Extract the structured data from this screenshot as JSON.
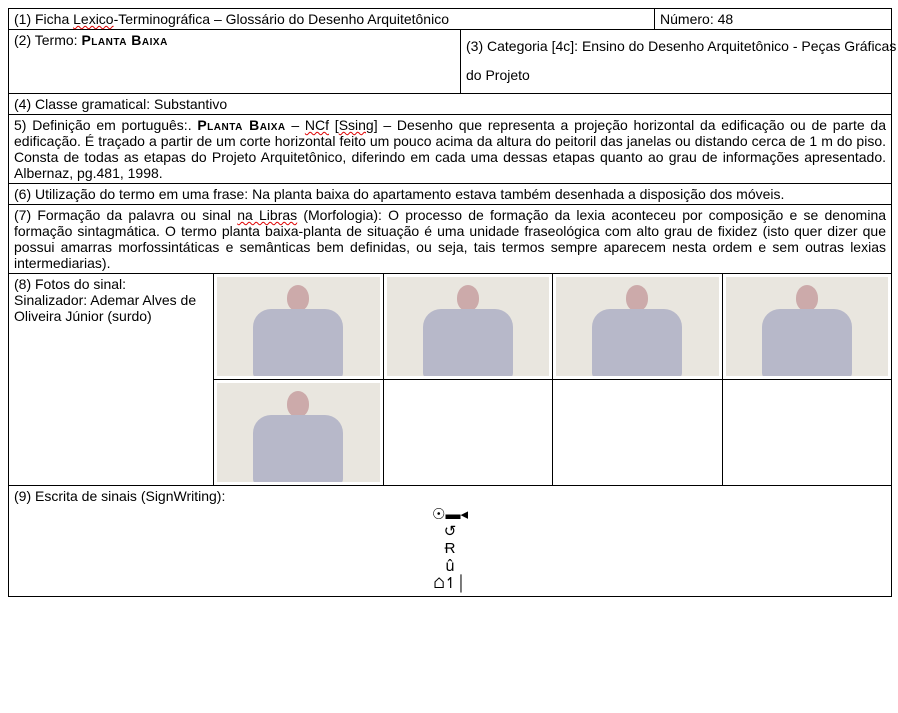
{
  "header": {
    "title_label": "(1) Ficha ",
    "title_word1": "Lexico",
    "title_rest": "-Terminográfica – Glossário do Desenho Arquitetônico",
    "number_label": "Número: ",
    "number_value": "48"
  },
  "term": {
    "label": "(2) Termo: ",
    "value": "Planta Baixa"
  },
  "category": {
    "label": "(3) Categoria [4c]: ",
    "text": "Ensino do Desenho Arquitetônico - Peças Gráficas do Projeto"
  },
  "grammar": {
    "text": "(4) Classe gramatical: Substantivo"
  },
  "definition": {
    "lead": "5) Definição em português:. ",
    "term": "Planta Baixa",
    "dash": " – ",
    "code": "NCf",
    "bracket": " [",
    "code2": "Ssing",
    "close": "] – ",
    "body": "Desenho que representa a projeção horizontal da edificação ou de parte da edificação. É traçado a partir de um corte horizontal feito um pouco acima da altura do peitoril das janelas ou distando cerca de 1 m do piso. Consta de todas as etapas do Projeto Arquitetônico, diferindo em cada uma dessas etapas quanto ao grau de informações apresentado. Albernaz, pg.481, 1998."
  },
  "usage": {
    "text": "(6) Utilização do termo em uma frase: Na planta baixa do apartamento estava também desenhada a disposição dos móveis."
  },
  "morphology": {
    "lead": "(7) Formação da palavra ou sinal ",
    "word": "na Libras",
    "rest": " (Morfologia): O processo de formação da lexia aconteceu por composição e se denomina formação sintagmática. O termo planta baixa-planta de situação é uma unidade fraseológica com alto grau de fixidez (isto quer dizer que possui amarras morfossintáticas e semânticas bem definidas, ou seja, tais termos sempre aparecem nesta ordem e sem outras lexias intermediarias)."
  },
  "photos": {
    "label": "(8) Fotos do sinal:",
    "signer_label": "Sinalizador: Ademar Alves de Oliveira Júnior (surdo)",
    "count_row1": 4,
    "count_row2": 4,
    "filled_row2": 1
  },
  "signwriting": {
    "label": "(9) Escrita de sinais (SignWriting):",
    "glyph_lines": [
      "☉▬◂",
      "↺",
      "Ɍ",
      "û",
      "⌂↿│"
    ]
  }
}
